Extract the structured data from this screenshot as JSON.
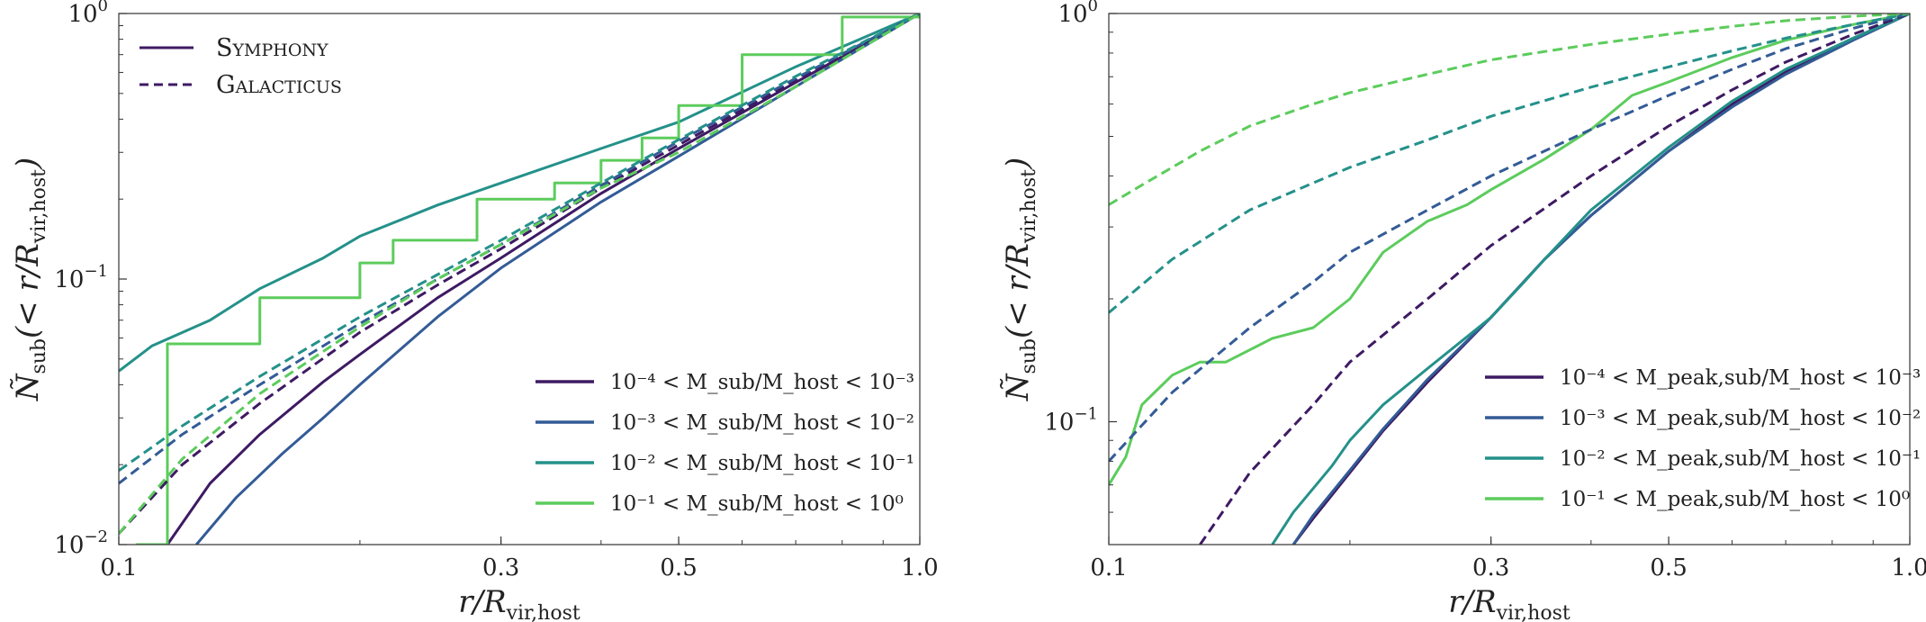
{
  "colors": {
    "bin1": "#3e1a63",
    "bin2": "#335b96",
    "bin3": "#24918a",
    "bin4": "#5ccc5c",
    "axis": "#333333"
  },
  "chart_data": [
    {
      "type": "line",
      "xscale": "log",
      "yscale": "log",
      "xlim": [
        0.1,
        1.0
      ],
      "ylim": [
        0.01,
        1.0
      ],
      "xticks": [
        {
          "v": 0.1,
          "label": "0.1"
        },
        {
          "v": 0.3,
          "label": "0.3"
        },
        {
          "v": 0.5,
          "label": "0.5"
        },
        {
          "v": 1.0,
          "label": "1.0"
        }
      ],
      "yticks": [
        {
          "v": 0.01,
          "base": "10",
          "exp": "−2"
        },
        {
          "v": 0.1,
          "base": "10",
          "exp": "−1"
        },
        {
          "v": 1.0,
          "base": "10",
          "exp": "0"
        }
      ],
      "xlabel": {
        "main": "r/R",
        "sub": "vir,host"
      },
      "ylabel": {
        "main": "Ñ",
        "sub": "sub",
        "rest": "(< r/R",
        "sub2": "vir,host",
        "end": ")"
      },
      "style_legend": [
        {
          "name": "Symphony",
          "dash": "solid"
        },
        {
          "name": "Galacticus",
          "dash": "dashed"
        }
      ],
      "legend": [
        {
          "label": "10⁻⁴ < M_sub/M_host < 10⁻³",
          "color": "#3e1a63"
        },
        {
          "label": "10⁻³ < M_sub/M_host < 10⁻²",
          "color": "#335b96"
        },
        {
          "label": "10⁻² < M_sub/M_host < 10⁻¹",
          "color": "#24918a"
        },
        {
          "label": "10⁻¹ < M_sub/M_host < 10⁰",
          "color": "#5ccc5c"
        }
      ],
      "series": [
        {
          "name": "Symphony bin 1",
          "color": "#3e1a63",
          "dash": "solid",
          "x": [
            0.115,
            0.13,
            0.15,
            0.18,
            0.2,
            0.25,
            0.3,
            0.4,
            0.5,
            0.7,
            1.0
          ],
          "y": [
            0.01,
            0.017,
            0.026,
            0.041,
            0.052,
            0.085,
            0.12,
            0.21,
            0.31,
            0.55,
            1.0
          ]
        },
        {
          "name": "Symphony bin 2",
          "color": "#335b96",
          "dash": "solid",
          "x": [
            0.125,
            0.14,
            0.16,
            0.18,
            0.2,
            0.25,
            0.3,
            0.4,
            0.5,
            0.7,
            1.0
          ],
          "y": [
            0.01,
            0.015,
            0.022,
            0.03,
            0.04,
            0.072,
            0.11,
            0.195,
            0.29,
            0.53,
            1.0
          ]
        },
        {
          "name": "Symphony bin 3",
          "color": "#24918a",
          "dash": "solid",
          "x": [
            0.1,
            0.11,
            0.13,
            0.15,
            0.18,
            0.2,
            0.25,
            0.3,
            0.4,
            0.5,
            0.7,
            1.0
          ],
          "y": [
            0.045,
            0.056,
            0.07,
            0.092,
            0.12,
            0.145,
            0.19,
            0.23,
            0.31,
            0.39,
            0.63,
            1.0
          ]
        },
        {
          "name": "Symphony bin 4",
          "color": "#5ccc5c",
          "dash": "solid",
          "stepped": true,
          "x": [
            0.105,
            0.115,
            0.13,
            0.15,
            0.17,
            0.2,
            0.22,
            0.25,
            0.28,
            0.3,
            0.35,
            0.4,
            0.45,
            0.5,
            0.6,
            0.8,
            0.9,
            1.0
          ],
          "y": [
            0.01,
            0.057,
            0.057,
            0.085,
            0.085,
            0.115,
            0.14,
            0.14,
            0.2,
            0.2,
            0.23,
            0.28,
            0.34,
            0.45,
            0.7,
            0.97,
            0.97,
            1.0
          ]
        },
        {
          "name": "Galacticus bin 1",
          "color": "#3e1a63",
          "dash": "dashed",
          "x": [
            0.1,
            0.12,
            0.15,
            0.2,
            0.25,
            0.3,
            0.4,
            0.5,
            0.7,
            1.0
          ],
          "y": [
            0.011,
            0.02,
            0.034,
            0.063,
            0.095,
            0.13,
            0.22,
            0.32,
            0.56,
            1.0
          ]
        },
        {
          "name": "Galacticus bin 2",
          "color": "#335b96",
          "dash": "dashed",
          "x": [
            0.1,
            0.12,
            0.15,
            0.2,
            0.25,
            0.3,
            0.4,
            0.5,
            0.7,
            1.0
          ],
          "y": [
            0.017,
            0.026,
            0.04,
            0.068,
            0.1,
            0.135,
            0.225,
            0.33,
            0.57,
            1.0
          ]
        },
        {
          "name": "Galacticus bin 3",
          "color": "#24918a",
          "dash": "dashed",
          "x": [
            0.1,
            0.12,
            0.15,
            0.2,
            0.25,
            0.3,
            0.4,
            0.5,
            0.7,
            1.0
          ],
          "y": [
            0.019,
            0.028,
            0.043,
            0.072,
            0.104,
            0.14,
            0.23,
            0.335,
            0.58,
            1.0
          ]
        },
        {
          "name": "Galacticus bin 4",
          "color": "#5ccc5c",
          "dash": "dashed",
          "x": [
            0.1,
            0.12,
            0.15,
            0.2,
            0.25,
            0.3,
            0.4,
            0.5,
            0.7,
            1.0
          ],
          "y": [
            0.011,
            0.021,
            0.037,
            0.066,
            0.1,
            0.135,
            0.22,
            0.3,
            0.53,
            1.0
          ]
        }
      ]
    },
    {
      "type": "line",
      "xscale": "log",
      "yscale": "log",
      "xlim": [
        0.1,
        1.0
      ],
      "ylim": [
        0.05,
        1.0
      ],
      "xticks": [
        {
          "v": 0.1,
          "label": "0.1"
        },
        {
          "v": 0.3,
          "label": "0.3"
        },
        {
          "v": 0.5,
          "label": "0.5"
        },
        {
          "v": 1.0,
          "label": "1.0"
        }
      ],
      "yticks": [
        {
          "v": 0.1,
          "base": "10",
          "exp": "−1"
        },
        {
          "v": 1.0,
          "base": "10",
          "exp": "0"
        }
      ],
      "xlabel": {
        "main": "r/R",
        "sub": "vir,host"
      },
      "ylabel": {
        "main": "Ñ",
        "sub": "sub",
        "rest": "(< r/R",
        "sub2": "vir,host",
        "end": ")"
      },
      "legend": [
        {
          "label": "10⁻⁴ < M_peak,sub/M_host < 10⁻³",
          "color": "#3e1a63"
        },
        {
          "label": "10⁻³ < M_peak,sub/M_host < 10⁻²",
          "color": "#335b96"
        },
        {
          "label": "10⁻² < M_peak,sub/M_host < 10⁻¹",
          "color": "#24918a"
        },
        {
          "label": "10⁻¹ < M_peak,sub/M_host < 10⁰",
          "color": "#5ccc5c"
        }
      ],
      "series": [
        {
          "name": "Symphony bin 1",
          "color": "#3e1a63",
          "dash": "solid",
          "x": [
            0.17,
            0.18,
            0.2,
            0.22,
            0.25,
            0.3,
            0.35,
            0.4,
            0.5,
            0.6,
            0.7,
            0.85,
            1.0
          ],
          "y": [
            0.05,
            0.058,
            0.075,
            0.095,
            0.125,
            0.18,
            0.25,
            0.32,
            0.46,
            0.6,
            0.72,
            0.87,
            1.0
          ]
        },
        {
          "name": "Symphony bin 2",
          "color": "#335b96",
          "dash": "solid",
          "x": [
            0.17,
            0.18,
            0.2,
            0.22,
            0.25,
            0.3,
            0.35,
            0.4,
            0.5,
            0.6,
            0.7,
            0.85,
            1.0
          ],
          "y": [
            0.05,
            0.059,
            0.076,
            0.096,
            0.127,
            0.18,
            0.25,
            0.32,
            0.46,
            0.59,
            0.71,
            0.86,
            1.0
          ]
        },
        {
          "name": "Symphony bin 3",
          "color": "#24918a",
          "dash": "solid",
          "x": [
            0.16,
            0.17,
            0.19,
            0.2,
            0.22,
            0.25,
            0.3,
            0.33,
            0.35,
            0.4,
            0.5,
            0.6,
            0.7,
            0.85,
            1.0
          ],
          "y": [
            0.05,
            0.06,
            0.078,
            0.09,
            0.11,
            0.135,
            0.18,
            0.22,
            0.25,
            0.33,
            0.47,
            0.61,
            0.73,
            0.87,
            1.0
          ]
        },
        {
          "name": "Symphony bin 4",
          "color": "#5ccc5c",
          "dash": "solid",
          "x": [
            0.1,
            0.105,
            0.11,
            0.12,
            0.13,
            0.14,
            0.16,
            0.18,
            0.2,
            0.22,
            0.25,
            0.28,
            0.3,
            0.35,
            0.4,
            0.45,
            0.5,
            0.6,
            0.7,
            0.85,
            1.0
          ],
          "y": [
            0.07,
            0.082,
            0.11,
            0.13,
            0.14,
            0.14,
            0.16,
            0.17,
            0.2,
            0.26,
            0.31,
            0.34,
            0.37,
            0.44,
            0.52,
            0.63,
            0.68,
            0.78,
            0.86,
            0.94,
            1.0
          ]
        },
        {
          "name": "Galacticus bin 1",
          "color": "#3e1a63",
          "dash": "dashed",
          "x": [
            0.13,
            0.15,
            0.18,
            0.2,
            0.25,
            0.3,
            0.4,
            0.5,
            0.6,
            0.7,
            0.85,
            1.0
          ],
          "y": [
            0.05,
            0.075,
            0.11,
            0.14,
            0.2,
            0.27,
            0.4,
            0.53,
            0.65,
            0.76,
            0.89,
            1.0
          ]
        },
        {
          "name": "Galacticus bin 2",
          "color": "#335b96",
          "dash": "dashed",
          "x": [
            0.1,
            0.12,
            0.15,
            0.18,
            0.2,
            0.25,
            0.3,
            0.4,
            0.5,
            0.6,
            0.7,
            0.85,
            1.0
          ],
          "y": [
            0.08,
            0.118,
            0.17,
            0.22,
            0.26,
            0.33,
            0.4,
            0.52,
            0.63,
            0.73,
            0.82,
            0.92,
            1.0
          ]
        },
        {
          "name": "Galacticus bin 3",
          "color": "#24918a",
          "dash": "dashed",
          "x": [
            0.1,
            0.12,
            0.15,
            0.2,
            0.25,
            0.3,
            0.4,
            0.5,
            0.6,
            0.7,
            0.85,
            1.0
          ],
          "y": [
            0.185,
            0.25,
            0.33,
            0.42,
            0.49,
            0.56,
            0.66,
            0.74,
            0.81,
            0.87,
            0.94,
            1.0
          ]
        },
        {
          "name": "Galacticus bin 4",
          "color": "#5ccc5c",
          "dash": "dashed",
          "x": [
            0.1,
            0.11,
            0.13,
            0.15,
            0.18,
            0.2,
            0.25,
            0.3,
            0.4,
            0.5,
            0.6,
            0.7,
            0.85,
            1.0
          ],
          "y": [
            0.34,
            0.38,
            0.46,
            0.53,
            0.6,
            0.64,
            0.71,
            0.77,
            0.84,
            0.89,
            0.93,
            0.96,
            0.985,
            1.0
          ]
        }
      ]
    }
  ]
}
